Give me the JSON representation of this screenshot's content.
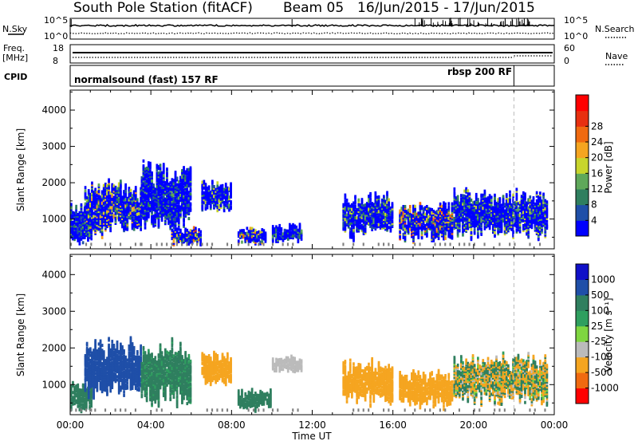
{
  "header": {
    "station": "South Pole Station (fitACF)",
    "beam": "Beam 05",
    "dates": "16/Jun/2015 - 17/Jun/2015"
  },
  "param_panels": {
    "nsky_label": "N.Sky",
    "nsearch_label": "N.Search",
    "freq_label_1": "Freq.",
    "freq_label_2": "[MHz]",
    "nave_label": "Nave",
    "cpid_label": "CPID",
    "left_ticks_top": [
      "10^5",
      "10^0"
    ],
    "right_ticks_top": [
      "10^5",
      "10^0"
    ],
    "left_ticks_freq": [
      "18",
      "8"
    ],
    "right_ticks_nave": [
      "60",
      "0"
    ],
    "cpid_modes": [
      {
        "label": "normalsound (fast) 157 RF",
        "start": 0,
        "end": 22
      },
      {
        "label": "rbsp 200 RF",
        "start": 22,
        "end": 24
      }
    ]
  },
  "colors": {
    "power_scale": [
      "#0000ff",
      "#1f4fa8",
      "#2f7f5f",
      "#5fa85a",
      "#c8d52c",
      "#f5a520",
      "#f06a10",
      "#e83010",
      "#ff0000"
    ],
    "velocity_scale": [
      "#ff0000",
      "#f06a10",
      "#f5a520",
      "#bbbbbb",
      "#7fd640",
      "#2f9f5f",
      "#2f7f5f",
      "#1f4fa8",
      "#1010c8"
    ],
    "ground_scatter": "#808080"
  },
  "chart_data": [
    {
      "type": "heatmap",
      "title": "",
      "ylabel": "Slant Range [km]",
      "xlabel": "Time UT",
      "x_range_hours": [
        0,
        24
      ],
      "y_range_km": [
        180,
        4550
      ],
      "x_ticks": [
        "00:00",
        "04:00",
        "08:00",
        "12:00",
        "16:00",
        "20:00",
        "00:00"
      ],
      "y_ticks": [
        1000,
        2000,
        3000,
        4000
      ],
      "colorbar": {
        "label": "Power [dB]",
        "ticks": [
          "4",
          "8",
          "12",
          "16",
          "20",
          "24",
          "28"
        ],
        "range": [
          0,
          30
        ]
      },
      "approximate_echo_regions": [
        {
          "t_start": 0.0,
          "t_end": 1.1,
          "range_min": 300,
          "range_max": 1300,
          "level": "12-16"
        },
        {
          "t_start": 0.7,
          "t_end": 3.5,
          "range_min": 600,
          "range_max": 1900,
          "level": "20-30"
        },
        {
          "t_start": 3.5,
          "t_end": 6.0,
          "range_min": 700,
          "range_max": 2400,
          "level": "12-20"
        },
        {
          "t_start": 5.0,
          "t_end": 6.5,
          "range_min": 300,
          "range_max": 700,
          "level": "24-30"
        },
        {
          "t_start": 6.5,
          "t_end": 8.0,
          "range_min": 1200,
          "range_max": 2000,
          "level": "16-24"
        },
        {
          "t_start": 8.3,
          "t_end": 9.7,
          "range_min": 300,
          "range_max": 700,
          "level": "24-30"
        },
        {
          "t_start": 10.0,
          "t_end": 11.5,
          "range_min": 350,
          "range_max": 800,
          "level": "12-20"
        },
        {
          "t_start": 13.5,
          "t_end": 16.0,
          "range_min": 500,
          "range_max": 1600,
          "level": "16-24"
        },
        {
          "t_start": 16.3,
          "t_end": 19.0,
          "range_min": 400,
          "range_max": 1400,
          "level": "24-30"
        },
        {
          "t_start": 19.0,
          "t_end": 23.7,
          "range_min": 500,
          "range_max": 1700,
          "level": "16-28"
        }
      ]
    },
    {
      "type": "heatmap",
      "title": "",
      "ylabel": "Slant Range [km]",
      "xlabel": "Time UT",
      "x_range_hours": [
        0,
        24
      ],
      "y_range_km": [
        180,
        4550
      ],
      "x_ticks": [
        "00:00",
        "04:00",
        "08:00",
        "12:00",
        "16:00",
        "20:00",
        "00:00"
      ],
      "y_ticks": [
        1000,
        2000,
        3000,
        4000
      ],
      "colorbar": {
        "label": "Velocity [m s⁻¹]",
        "ticks": [
          "1000",
          "500",
          "100",
          "25",
          "-25",
          "-100",
          "-500",
          "-1000"
        ],
        "range": [
          -1000,
          1000
        ]
      },
      "approximate_echo_regions": [
        {
          "t_start": 0.0,
          "t_end": 1.1,
          "range_min": 300,
          "range_max": 1000,
          "level": "100 to 500"
        },
        {
          "t_start": 0.7,
          "t_end": 3.5,
          "range_min": 700,
          "range_max": 2100,
          "level": "500 to 1000"
        },
        {
          "t_start": 3.5,
          "t_end": 6.0,
          "range_min": 500,
          "range_max": 2000,
          "level": "25 to 500"
        },
        {
          "t_start": 6.5,
          "t_end": 8.0,
          "range_min": 1000,
          "range_max": 1800,
          "level": "-500 to -100"
        },
        {
          "t_start": 8.3,
          "t_end": 10.0,
          "range_min": 300,
          "range_max": 800,
          "level": "100 to 500"
        },
        {
          "t_start": 10.0,
          "t_end": 11.5,
          "range_min": 1300,
          "range_max": 1700,
          "level": "-100 to -25"
        },
        {
          "t_start": 13.5,
          "t_end": 16.0,
          "range_min": 500,
          "range_max": 1600,
          "level": "-500 to -100"
        },
        {
          "t_start": 16.3,
          "t_end": 19.0,
          "range_min": 400,
          "range_max": 1300,
          "level": "-500 to -100"
        },
        {
          "t_start": 19.0,
          "t_end": 23.7,
          "range_min": 500,
          "range_max": 1700,
          "level": "-500 to 500"
        }
      ]
    }
  ]
}
